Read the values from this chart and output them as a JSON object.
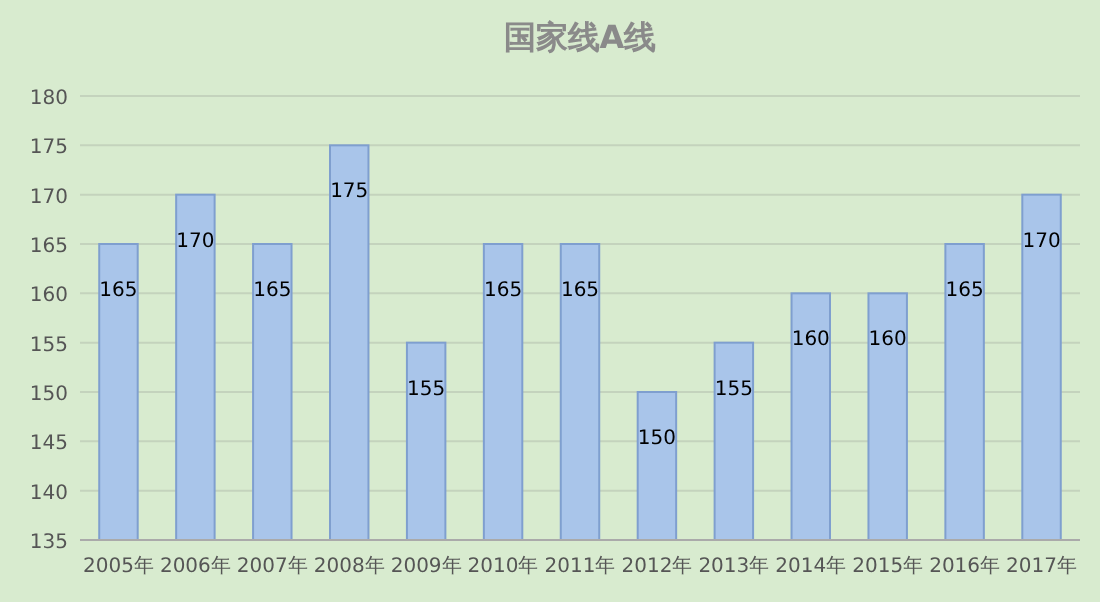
{
  "chart_data": {
    "type": "bar",
    "title": "国家线A线",
    "categories": [
      "2005年",
      "2006年",
      "2007年",
      "2008年",
      "2009年",
      "2010年",
      "2011年",
      "2012年",
      "2013年",
      "2014年",
      "2015年",
      "2016年",
      "2017年"
    ],
    "values": [
      165,
      170,
      165,
      175,
      155,
      165,
      165,
      150,
      155,
      160,
      160,
      165,
      170
    ],
    "color": "#a9c5ea",
    "ylim": [
      135,
      180
    ],
    "yticks": [
      135,
      140,
      145,
      150,
      155,
      160,
      165,
      170,
      175,
      180
    ],
    "grid": "y",
    "data_labels": true
  }
}
